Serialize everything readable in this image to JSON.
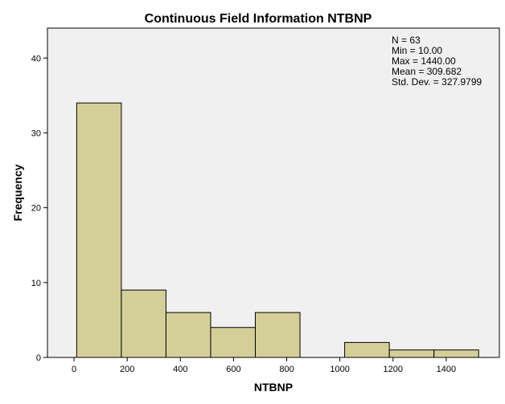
{
  "chart_data": {
    "type": "bar",
    "title": "Continuous Field Information NTBNP",
    "xlabel": "NTBNP",
    "ylabel": "Frequency",
    "xlim": [
      -100,
      1600
    ],
    "ylim": [
      0,
      44
    ],
    "grid": false,
    "bin_edges": [
      10,
      178,
      346,
      514,
      682,
      850,
      1018,
      1186,
      1354,
      1522
    ],
    "values": [
      34,
      9,
      6,
      4,
      6,
      0,
      2,
      1,
      1
    ],
    "x_ticks": [
      "0",
      "200",
      "400",
      "600",
      "800",
      "1000",
      "1200",
      "1400"
    ],
    "y_ticks": [
      "0",
      "10",
      "20",
      "30",
      "40"
    ],
    "bar_color": "#d4cf99",
    "plot_background": "#f0f0f0",
    "stats": [
      "N = 63",
      "Min = 10.00",
      "Max = 1440.00",
      "Mean = 309.682",
      "Std. Dev. = 327.9799"
    ]
  }
}
